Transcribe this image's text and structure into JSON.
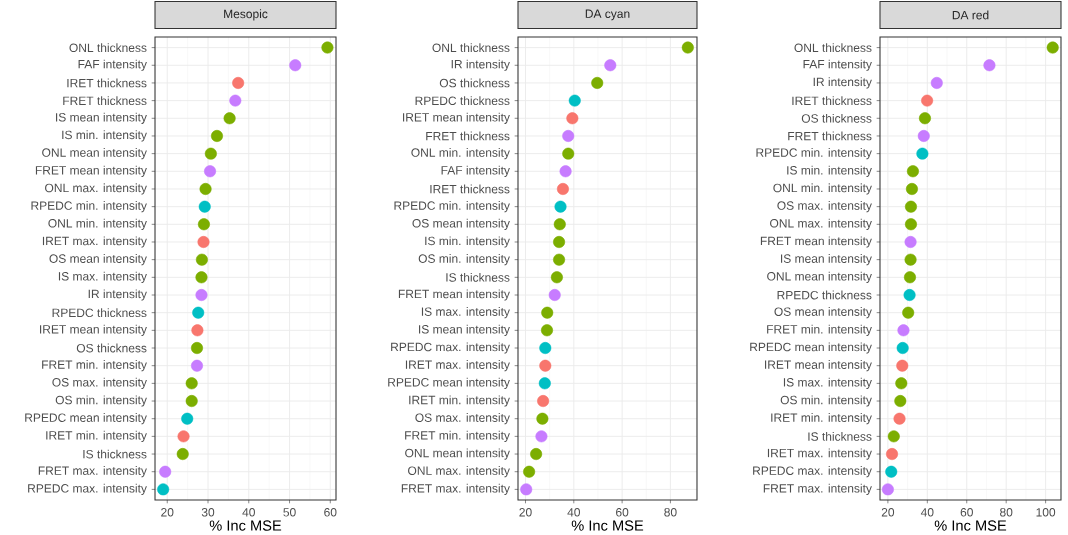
{
  "chart_data": [
    {
      "type": "scatter",
      "title": "Mesopic",
      "xlabel": "% Inc MSE",
      "orientation": "horizontal",
      "grid": true,
      "categories": [
        "ONL thickness",
        "FAF intensity",
        "IRET thickness",
        "FRET thickness",
        "IS mean intensity",
        "IS min. intensity",
        "ONL mean intensity",
        "FRET mean intensity",
        "ONL max. intensity",
        "RPEDC min. intensity",
        "ONL min. intensity",
        "IRET max. intensity",
        "OS mean intensity",
        "IS max. intensity",
        "IR intensity",
        "RPEDC thickness",
        "IRET mean intensity",
        "OS thickness",
        "FRET min. intensity",
        "OS max. intensity",
        "OS min. intensity",
        "RPEDC mean intensity",
        "IRET min. intensity",
        "IS thickness",
        "FRET max. intensity",
        "RPEDC max. intensity"
      ],
      "values": [
        59.3,
        51.4,
        37.4,
        36.7,
        35.3,
        32.2,
        30.7,
        30.5,
        29.4,
        29.2,
        29.0,
        28.9,
        28.5,
        28.4,
        28.4,
        27.6,
        27.4,
        27.3,
        27.3,
        26.0,
        26.0,
        24.9,
        24.0,
        23.8,
        19.5,
        19.0
      ],
      "colors": [
        "#7CAE00",
        "#C77CFF",
        "#F8766D",
        "#C77CFF",
        "#7CAE00",
        "#7CAE00",
        "#7CAE00",
        "#C77CFF",
        "#7CAE00",
        "#00BFC4",
        "#7CAE00",
        "#F8766D",
        "#7CAE00",
        "#7CAE00",
        "#C77CFF",
        "#00BFC4",
        "#F8766D",
        "#7CAE00",
        "#C77CFF",
        "#7CAE00",
        "#7CAE00",
        "#00BFC4",
        "#F8766D",
        "#7CAE00",
        "#C77CFF",
        "#00BFC4"
      ],
      "xlim": [
        17.0,
        61.4
      ],
      "xticks": [
        20,
        30,
        40,
        50,
        60
      ]
    },
    {
      "type": "scatter",
      "title": "DA cyan",
      "xlabel": "% Inc MSE",
      "orientation": "horizontal",
      "grid": true,
      "categories": [
        "ONL thickness",
        "IR intensity",
        "OS thickness",
        "RPEDC thickness",
        "IRET mean intensity",
        "FRET thickness",
        "ONL min. intensity",
        "FAF intensity",
        "IRET thickness",
        "RPEDC min. intensity",
        "OS mean intensity",
        "IS min. intensity",
        "OS min. intensity",
        "IS thickness",
        "FRET mean intensity",
        "IS max. intensity",
        "IS mean intensity",
        "RPEDC max. intensity",
        "IRET max. intensity",
        "RPEDC mean intensity",
        "IRET min. intensity",
        "OS max. intensity",
        "FRET min. intensity",
        "ONL mean intensity",
        "ONL max. intensity",
        "FRET max. intensity"
      ],
      "values": [
        87.2,
        55.1,
        49.7,
        40.4,
        39.4,
        37.7,
        37.7,
        36.6,
        35.5,
        34.5,
        34.2,
        33.9,
        33.9,
        33.0,
        32.1,
        29.0,
        28.9,
        28.2,
        28.2,
        28.0,
        27.3,
        27.0,
        26.6,
        24.4,
        21.5,
        20.3
      ],
      "colors": [
        "#7CAE00",
        "#C77CFF",
        "#7CAE00",
        "#00BFC4",
        "#F8766D",
        "#C77CFF",
        "#7CAE00",
        "#C77CFF",
        "#F8766D",
        "#00BFC4",
        "#7CAE00",
        "#7CAE00",
        "#7CAE00",
        "#7CAE00",
        "#C77CFF",
        "#7CAE00",
        "#7CAE00",
        "#00BFC4",
        "#F8766D",
        "#00BFC4",
        "#F8766D",
        "#7CAE00",
        "#C77CFF",
        "#7CAE00",
        "#7CAE00",
        "#C77CFF"
      ],
      "xlim": [
        16.9,
        91.0
      ],
      "xticks": [
        20,
        40,
        60,
        80
      ]
    },
    {
      "type": "scatter",
      "title": "DA red",
      "xlabel": "% Inc MSE",
      "orientation": "horizontal",
      "grid": true,
      "categories": [
        "ONL thickness",
        "FAF intensity",
        "IR intensity",
        "IRET thickness",
        "OS thickness",
        "FRET thickness",
        "RPEDC min. intensity",
        "IS min. intensity",
        "ONL min. intensity",
        "OS max. intensity",
        "ONL max. intensity",
        "FRET mean intensity",
        "IS mean intensity",
        "ONL mean intensity",
        "RPEDC thickness",
        "OS mean intensity",
        "FRET min. intensity",
        "RPEDC mean intensity",
        "IRET mean intensity",
        "IS max. intensity",
        "OS min. intensity",
        "IRET min. intensity",
        "IS thickness",
        "IRET max. intensity",
        "RPEDC max. intensity",
        "FRET max. intensity"
      ],
      "values": [
        103.6,
        71.5,
        44.8,
        39.9,
        38.8,
        38.2,
        37.5,
        32.7,
        32.2,
        31.7,
        31.7,
        31.5,
        31.5,
        31.2,
        31.0,
        30.3,
        27.9,
        27.5,
        27.3,
        26.8,
        26.3,
        25.9,
        23.0,
        22.1,
        21.7,
        20.0
      ],
      "colors": [
        "#7CAE00",
        "#C77CFF",
        "#C77CFF",
        "#F8766D",
        "#7CAE00",
        "#C77CFF",
        "#00BFC4",
        "#7CAE00",
        "#7CAE00",
        "#7CAE00",
        "#7CAE00",
        "#C77CFF",
        "#7CAE00",
        "#7CAE00",
        "#00BFC4",
        "#7CAE00",
        "#C77CFF",
        "#00BFC4",
        "#F8766D",
        "#7CAE00",
        "#7CAE00",
        "#F8766D",
        "#7CAE00",
        "#F8766D",
        "#00BFC4",
        "#C77CFF"
      ],
      "xlim": [
        16.0,
        107.8
      ],
      "xticks": [
        20,
        40,
        60,
        80,
        100
      ]
    }
  ]
}
